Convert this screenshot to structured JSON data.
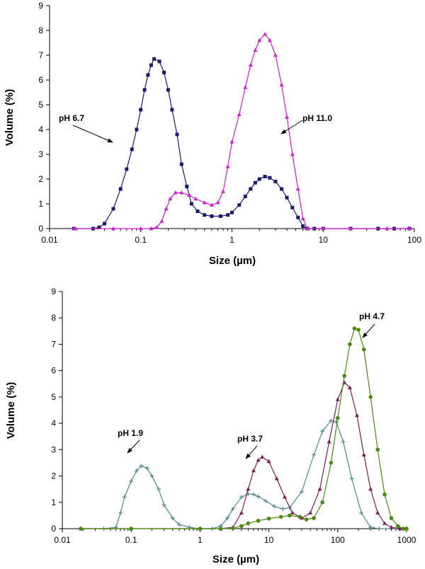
{
  "chart_data": [
    {
      "type": "line",
      "xscale": "log",
      "xlabel": "Size (µm)",
      "ylabel": "Volume (%)",
      "xlim": [
        0.01,
        100
      ],
      "ylim": [
        0,
        9
      ],
      "x_ticks": [
        "0.01",
        "0.1",
        "1",
        "10",
        "100"
      ],
      "y_ticks": [
        "0",
        "1",
        "2",
        "3",
        "4",
        "5",
        "6",
        "7",
        "8",
        "9"
      ],
      "series": [
        {
          "name": "pH 6.7",
          "color": "#1a1a6e",
          "marker": "square",
          "points": [
            [
              0.0185,
              0
            ],
            [
              0.03,
              0
            ],
            [
              0.035,
              0.05
            ],
            [
              0.04,
              0.2
            ],
            [
              0.05,
              0.8
            ],
            [
              0.06,
              1.6
            ],
            [
              0.07,
              2.4
            ],
            [
              0.08,
              3.2
            ],
            [
              0.09,
              4.0
            ],
            [
              0.1,
              4.8
            ],
            [
              0.11,
              5.6
            ],
            [
              0.12,
              6.2
            ],
            [
              0.13,
              6.6
            ],
            [
              0.14,
              6.85
            ],
            [
              0.16,
              6.75
            ],
            [
              0.18,
              6.3
            ],
            [
              0.2,
              5.6
            ],
            [
              0.22,
              4.8
            ],
            [
              0.25,
              3.8
            ],
            [
              0.28,
              2.6
            ],
            [
              0.32,
              1.7
            ],
            [
              0.36,
              1.0
            ],
            [
              0.42,
              0.7
            ],
            [
              0.5,
              0.55
            ],
            [
              0.6,
              0.5
            ],
            [
              0.75,
              0.5
            ],
            [
              0.9,
              0.55
            ],
            [
              1.0,
              0.65
            ],
            [
              1.2,
              0.95
            ],
            [
              1.4,
              1.3
            ],
            [
              1.6,
              1.6
            ],
            [
              1.8,
              1.85
            ],
            [
              2.0,
              2.0
            ],
            [
              2.3,
              2.1
            ],
            [
              2.6,
              2.05
            ],
            [
              3.0,
              1.9
            ],
            [
              3.5,
              1.6
            ],
            [
              4.0,
              1.25
            ],
            [
              4.6,
              0.85
            ],
            [
              5.3,
              0.45
            ],
            [
              6.0,
              0.1
            ],
            [
              6.7,
              0
            ],
            [
              8,
              0
            ],
            [
              10,
              0
            ],
            [
              20,
              0
            ],
            [
              40,
              0
            ],
            [
              60,
              0
            ],
            [
              88,
              0
            ]
          ]
        },
        {
          "name": "pH 11.0",
          "color": "#d21ed2",
          "marker": "triangle",
          "points": [
            [
              0.0185,
              0
            ],
            [
              0.05,
              0
            ],
            [
              0.1,
              0
            ],
            [
              0.13,
              0
            ],
            [
              0.15,
              0.05
            ],
            [
              0.17,
              0.3
            ],
            [
              0.19,
              0.8
            ],
            [
              0.21,
              1.2
            ],
            [
              0.24,
              1.45
            ],
            [
              0.28,
              1.45
            ],
            [
              0.34,
              1.35
            ],
            [
              0.4,
              1.2
            ],
            [
              0.5,
              1.05
            ],
            [
              0.6,
              0.95
            ],
            [
              0.7,
              1.05
            ],
            [
              0.8,
              1.5
            ],
            [
              0.9,
              2.5
            ],
            [
              1.0,
              3.5
            ],
            [
              1.2,
              4.6
            ],
            [
              1.4,
              5.7
            ],
            [
              1.6,
              6.6
            ],
            [
              1.8,
              7.2
            ],
            [
              2.0,
              7.6
            ],
            [
              2.3,
              7.85
            ],
            [
              2.6,
              7.6
            ],
            [
              3.0,
              7.0
            ],
            [
              3.5,
              5.8
            ],
            [
              4.0,
              4.5
            ],
            [
              4.6,
              3.0
            ],
            [
              5.3,
              1.6
            ],
            [
              6.0,
              0.4
            ],
            [
              6.7,
              0
            ],
            [
              10,
              0
            ],
            [
              20,
              0
            ],
            [
              50,
              0
            ],
            [
              88,
              0
            ]
          ]
        }
      ],
      "annotations": [
        {
          "text": "pH 6.7",
          "series": "pH 6.7"
        },
        {
          "text": "pH 11.0",
          "series": "pH 11.0"
        }
      ]
    },
    {
      "type": "line",
      "xscale": "log",
      "xlabel": "Size (µm)",
      "ylabel": "Volume (%)",
      "xlim": [
        0.01,
        1000
      ],
      "ylim": [
        0,
        9
      ],
      "x_ticks": [
        "0.01",
        "0.1",
        "1",
        "10",
        "100",
        "1000"
      ],
      "y_ticks": [
        "0",
        "1",
        "2",
        "3",
        "4",
        "5",
        "6",
        "7",
        "8",
        "9"
      ],
      "series": [
        {
          "name": "pH 1.9",
          "color": "#4f8a8b",
          "marker": "plus",
          "points": [
            [
              0.0185,
              0
            ],
            [
              0.04,
              0
            ],
            [
              0.06,
              0.05
            ],
            [
              0.07,
              0.6
            ],
            [
              0.08,
              1.2
            ],
            [
              0.1,
              1.8
            ],
            [
              0.12,
              2.2
            ],
            [
              0.14,
              2.38
            ],
            [
              0.17,
              2.3
            ],
            [
              0.2,
              2.0
            ],
            [
              0.25,
              1.5
            ],
            [
              0.3,
              0.9
            ],
            [
              0.4,
              0.4
            ],
            [
              0.5,
              0.15
            ],
            [
              0.7,
              0.05
            ],
            [
              1,
              0
            ],
            [
              1.5,
              0
            ],
            [
              2,
              0.1
            ],
            [
              2.5,
              0.4
            ],
            [
              3,
              0.75
            ],
            [
              4,
              1.2
            ],
            [
              5,
              1.32
            ],
            [
              6,
              1.3
            ],
            [
              7,
              1.22
            ],
            [
              9,
              1.05
            ],
            [
              12,
              0.85
            ],
            [
              16,
              0.75
            ],
            [
              20,
              0.8
            ],
            [
              30,
              1.4
            ],
            [
              45,
              2.8
            ],
            [
              60,
              3.7
            ],
            [
              80,
              4.1
            ],
            [
              95,
              4.05
            ],
            [
              120,
              3.3
            ],
            [
              160,
              1.9
            ],
            [
              220,
              0.6
            ],
            [
              300,
              0.05
            ],
            [
              400,
              0
            ],
            [
              1000,
              0
            ]
          ]
        },
        {
          "name": "pH 3.7",
          "color": "#7a1e52",
          "marker": "triangle",
          "points": [
            [
              0.0185,
              0
            ],
            [
              0.1,
              0
            ],
            [
              1,
              0
            ],
            [
              2,
              0
            ],
            [
              3,
              0.05
            ],
            [
              4,
              0.6
            ],
            [
              5,
              1.5
            ],
            [
              6,
              2.2
            ],
            [
              7,
              2.6
            ],
            [
              8,
              2.72
            ],
            [
              10,
              2.55
            ],
            [
              13,
              1.9
            ],
            [
              17,
              1.2
            ],
            [
              22,
              0.6
            ],
            [
              30,
              0.4
            ],
            [
              40,
              0.6
            ],
            [
              55,
              1.5
            ],
            [
              75,
              3.3
            ],
            [
              100,
              4.9
            ],
            [
              125,
              5.55
            ],
            [
              150,
              5.35
            ],
            [
              190,
              4.3
            ],
            [
              240,
              2.8
            ],
            [
              300,
              1.5
            ],
            [
              380,
              0.6
            ],
            [
              480,
              0.2
            ],
            [
              600,
              0.05
            ],
            [
              800,
              0
            ],
            [
              1000,
              0
            ]
          ]
        },
        {
          "name": "pH 4.7",
          "color": "#4a8a12",
          "marker": "circle",
          "points": [
            [
              0.0185,
              0
            ],
            [
              0.1,
              0
            ],
            [
              1,
              0
            ],
            [
              2,
              0
            ],
            [
              3,
              0.02
            ],
            [
              4,
              0.1
            ],
            [
              5,
              0.2
            ],
            [
              7,
              0.3
            ],
            [
              10,
              0.38
            ],
            [
              15,
              0.45
            ],
            [
              20,
              0.5
            ],
            [
              28,
              0.45
            ],
            [
              35,
              0.35
            ],
            [
              45,
              0.4
            ],
            [
              60,
              1.0
            ],
            [
              80,
              2.5
            ],
            [
              100,
              4.2
            ],
            [
              125,
              5.8
            ],
            [
              150,
              7.0
            ],
            [
              175,
              7.6
            ],
            [
              200,
              7.55
            ],
            [
              240,
              6.8
            ],
            [
              300,
              5.0
            ],
            [
              380,
              3.0
            ],
            [
              480,
              1.3
            ],
            [
              600,
              0.4
            ],
            [
              750,
              0.1
            ],
            [
              900,
              0
            ],
            [
              1000,
              0
            ]
          ]
        }
      ],
      "annotations": [
        {
          "text": "pH 1.9",
          "series": "pH 1.9"
        },
        {
          "text": "pH 3.7",
          "series": "pH 3.7"
        },
        {
          "text": "pH 4.7",
          "series": "pH 4.7"
        }
      ]
    }
  ]
}
